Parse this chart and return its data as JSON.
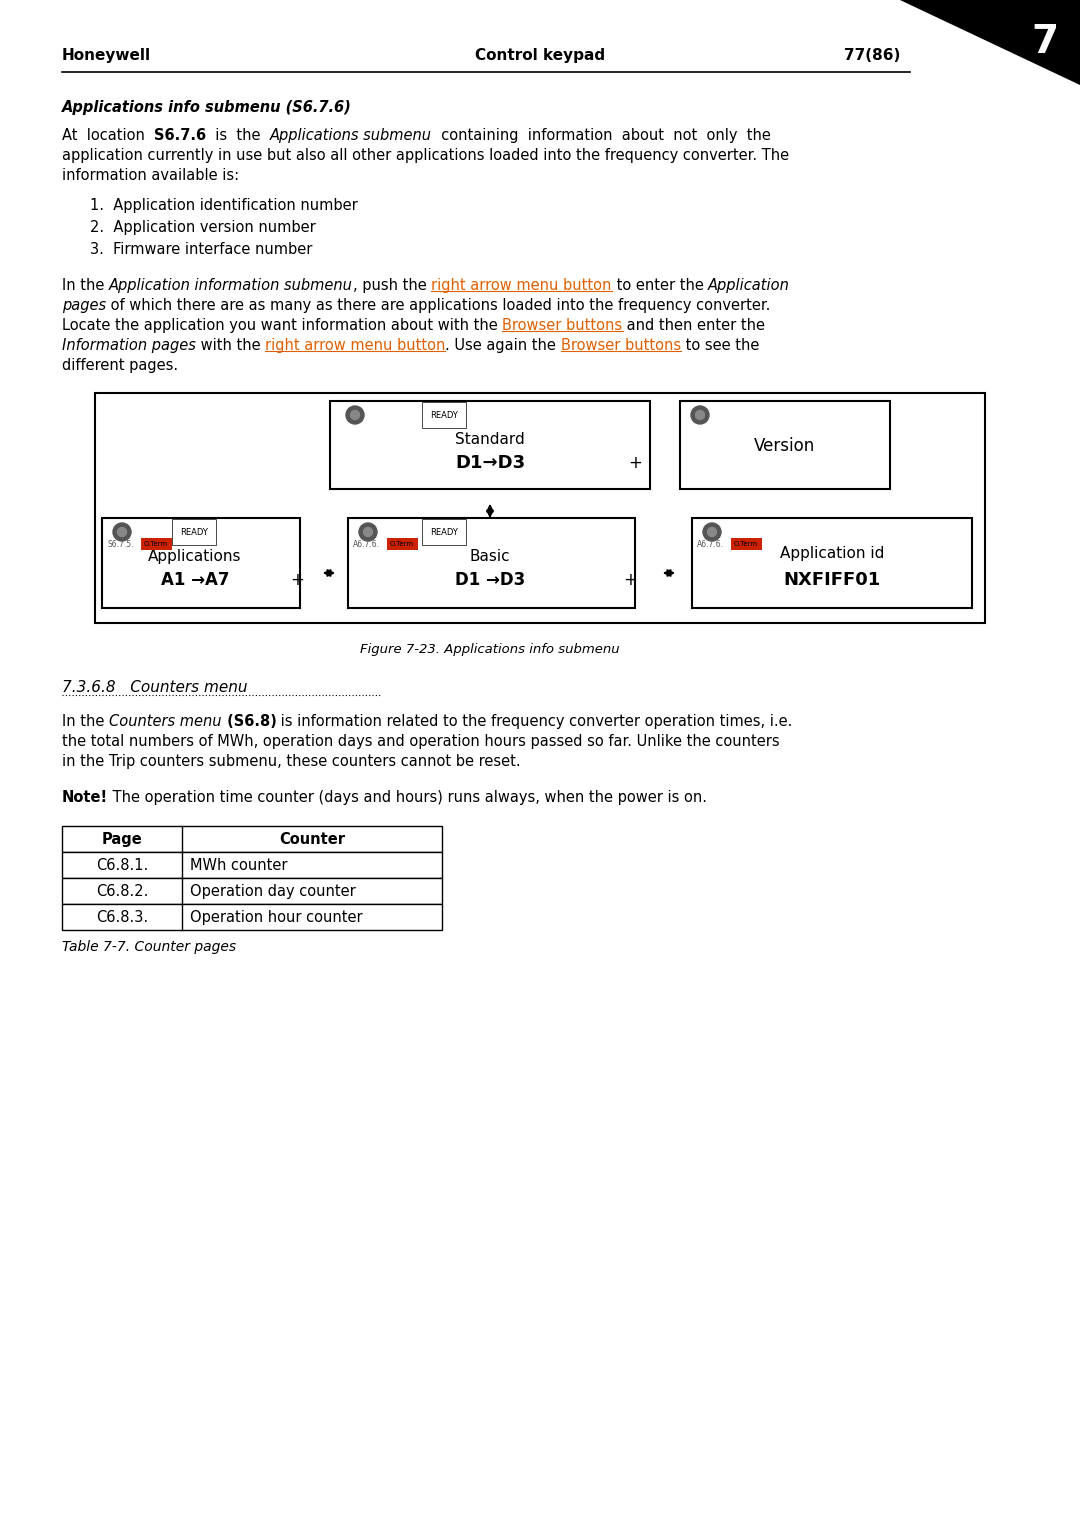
{
  "page_title_left": "Honeywell",
  "page_title_center": "Control keypad",
  "page_title_right": "77(86)",
  "page_number": "7",
  "section_heading": "Applications info submenu (S6.7.6)",
  "para1": "At  location  S6.7.6  is  the  Applications submenu  containing  information  about  not  only  the\napplication currently in use but also all other applications loaded into the frequency converter. The\ninformation available is:",
  "list_items": [
    "1.  Application identification number",
    "2.  Application version number",
    "3.  Firmware interface number"
  ],
  "para2_parts": [
    "In the ",
    "Application information submenu",
    ", push the ",
    "right arrow menu button",
    " to enter the ",
    "Application\npages",
    " of which there are as many as there are applications loaded into the frequency converter.\nLocate the application you want information about with the ",
    "Browser buttons",
    " and then enter the\n",
    "Information pages",
    " with the ",
    "right arrow menu button",
    ". Use again the ",
    "Browser buttons",
    " to see the\ndifferent pages."
  ],
  "figure_caption": "Figure 7-23. Applications info submenu",
  "section2_heading": "7.3.6.8   Counters menu",
  "para3_bold": "Counters menu",
  "para3": "In the Counters menu (S6.8) is information related to the frequency converter operation times, i.e.\nthe total numbers of MWh, operation days and operation hours passed so far. Unlike the counters\nin the Trip counters submenu, these counters cannot be reset.",
  "note_bold": "Note!",
  "note_text": " The operation time counter (days and hours) runs always, when the power is on.",
  "table_headers": [
    "Page",
    "Counter"
  ],
  "table_rows": [
    [
      "C6.8.1.",
      "MWh counter"
    ],
    [
      "C6.8.2.",
      "Operation day counter"
    ],
    [
      "C6.8.3.",
      "Operation hour counter"
    ]
  ],
  "table_caption": "Table 7-7. Counter pages",
  "bg_color": "#ffffff",
  "text_color": "#000000",
  "orange_color": "#e06000",
  "header_line_color": "#000000"
}
